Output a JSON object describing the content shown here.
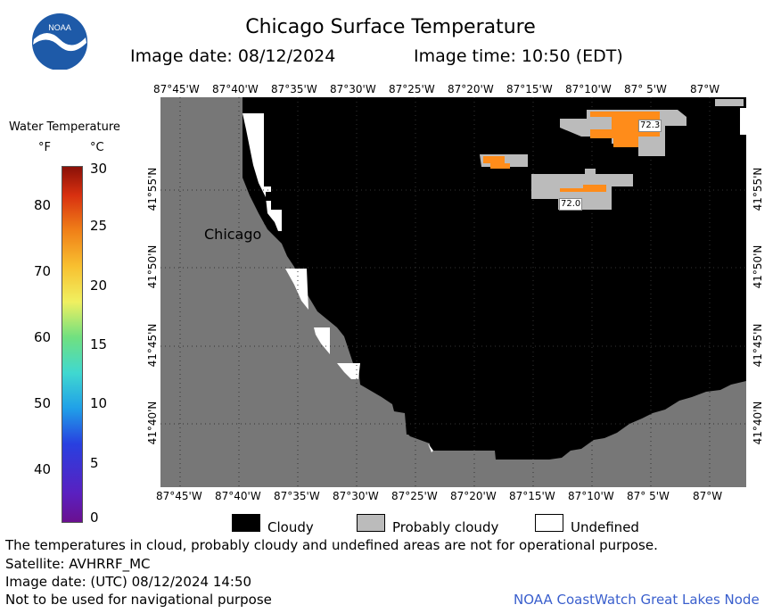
{
  "header": {
    "logo_text": "NOAA",
    "title": "Chicago Surface Temperature",
    "image_date": "Image date: 08/12/2024",
    "image_time": "Image time: 10:50 (EDT)"
  },
  "map": {
    "lon_labels": [
      "87°45'W",
      "87°40'W",
      "87°35'W",
      "87°30'W",
      "87°25'W",
      "87°20'W",
      "87°15'W",
      "87°10'W",
      "87° 5'W",
      "87°W"
    ],
    "lat_labels": [
      "41°55'N",
      "41°50'N",
      "41°45'N",
      "41°40'N"
    ],
    "city_label": "Chicago",
    "temp_labels": [
      "72.3",
      "72.0"
    ],
    "colors": {
      "land": "#777777",
      "cloudy": "#000000",
      "probably_cloudy": "#bbbbbb",
      "undefined": "#ffffff",
      "warm_water": "#ff8c1a"
    }
  },
  "colorbar": {
    "title": "Water Temperature",
    "unit_f": "°F",
    "unit_c": "°C",
    "f_ticks": [
      "80",
      "70",
      "60",
      "50",
      "40"
    ],
    "c_ticks": [
      "30",
      "25",
      "20",
      "15",
      "10",
      "5",
      "0"
    ]
  },
  "key": {
    "cloudy": "Cloudy",
    "probably_cloudy": "Probably cloudy",
    "undefined": "Undefined"
  },
  "footer": {
    "note": "The temperatures in cloud, probably cloudy and undefined areas are not for operational purpose.",
    "satellite": "Satellite: AVHRRF_MC",
    "utc_date": "Image date: (UTC) 08/12/2024  14:50",
    "nav": "Not to be used for navigational purpose",
    "node": "NOAA CoastWatch Great Lakes Node"
  }
}
